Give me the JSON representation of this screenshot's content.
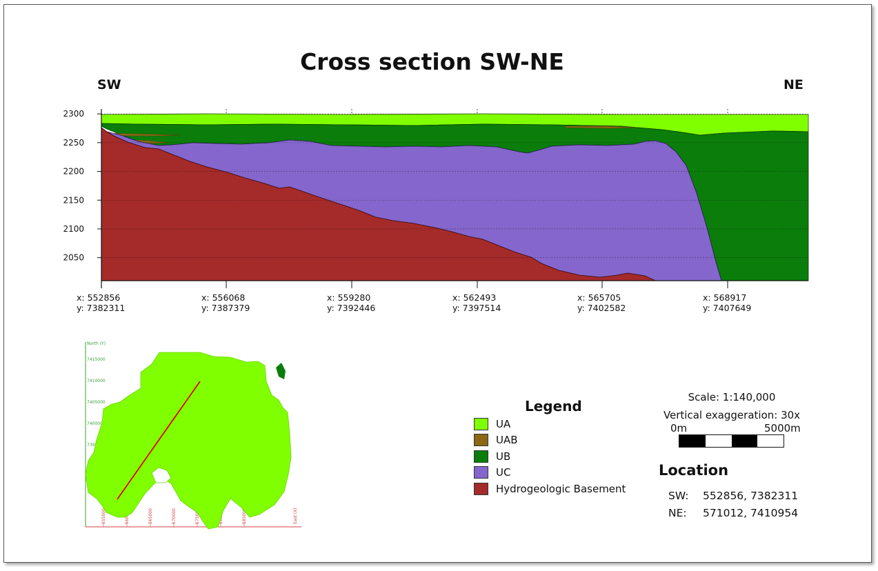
{
  "title": "Cross section SW-NE",
  "direction_left": "SW",
  "direction_right": "NE",
  "y_axis": {
    "ticks": [
      2300,
      2250,
      2200,
      2150,
      2100,
      2050
    ],
    "range": [
      2010,
      2305
    ]
  },
  "x_stations": [
    {
      "x": "x: 552856",
      "y": "y: 7382311"
    },
    {
      "x": "x: 556068",
      "y": "y: 7387379"
    },
    {
      "x": "x: 559280",
      "y": "y: 7392446"
    },
    {
      "x": "x: 562493",
      "y": "y: 7397514"
    },
    {
      "x": "x: 565705",
      "y": "y: 7402582"
    },
    {
      "x": "x: 568917",
      "y": "y: 7407649"
    }
  ],
  "legend": {
    "title": "Legend",
    "items": [
      {
        "label": "UA",
        "color": "#80ff00"
      },
      {
        "label": "UAB",
        "color": "#8b6914"
      },
      {
        "label": "UB",
        "color": "#0a7d0a"
      },
      {
        "label": "UC",
        "color": "#8466cc"
      },
      {
        "label": "Hydrogeologic Basement",
        "color": "#a52a2a"
      }
    ]
  },
  "scale": {
    "ratio": "Scale: 1:140,000",
    "exaggeration": "Vertical exaggeration: 30x",
    "bar_start": "0m",
    "bar_end": "5000m"
  },
  "location": {
    "title": "Location",
    "sw_label": "SW:",
    "sw_value": "552856, 7382311",
    "ne_label": "NE:",
    "ne_value": "571012, 7410954"
  },
  "inset_map": {
    "y_axis_title": "North (Y)",
    "x_axis_title": "East (X)",
    "y_ticks": [
      "7415000",
      "7410000",
      "7405000",
      "7400000",
      "7395000",
      "7390000",
      "7385000"
    ],
    "x_ticks": [
      "555000",
      "560000",
      "565000",
      "570000",
      "575000",
      "580000",
      "585000"
    ],
    "land_color": "#80ff00",
    "line_color": "#e00000"
  }
}
